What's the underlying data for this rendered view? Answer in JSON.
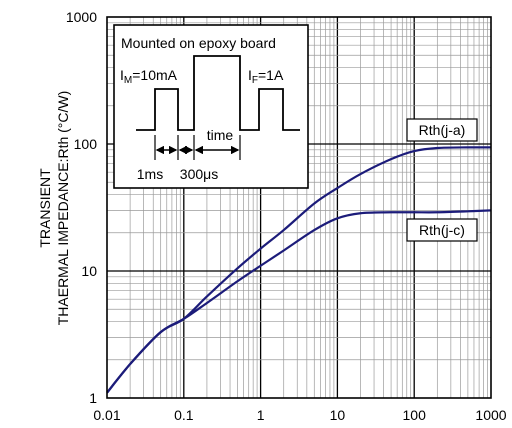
{
  "chart_data": {
    "type": "line",
    "xscale": "log",
    "yscale": "log",
    "xlim": [
      0.01,
      1000
    ],
    "ylim": [
      1,
      1000
    ],
    "xticks": [
      "0.01",
      "0.1",
      "1",
      "10",
      "100",
      "1000"
    ],
    "yticks": [
      "1",
      "10",
      "100",
      "1000"
    ],
    "ylabel_line1": "TRANSIENT",
    "ylabel_line2": "THAERMAL IMPEDANCE:Rth (°C/W)",
    "xlabel": "",
    "grid": true,
    "colors": {
      "series": "#1c1c7a",
      "grid": "#000000",
      "minor_grid": "#9a9a9a"
    },
    "series": [
      {
        "name": "Rth(j-a)",
        "x": [
          0.01,
          0.02,
          0.05,
          0.1,
          0.2,
          0.5,
          1,
          2,
          5,
          10,
          20,
          50,
          100,
          200,
          500,
          1000
        ],
        "values": [
          1.1,
          1.85,
          3.3,
          4.2,
          6.3,
          10.5,
          15,
          21,
          34,
          45,
          58,
          76,
          88,
          93,
          94,
          94
        ]
      },
      {
        "name": "Rth(j-c)",
        "x": [
          0.01,
          0.02,
          0.05,
          0.1,
          0.2,
          0.5,
          1,
          2,
          5,
          10,
          20,
          50,
          100,
          200,
          500,
          1000
        ],
        "values": [
          1.1,
          1.85,
          3.3,
          4.2,
          5.6,
          8.3,
          11,
          14.5,
          21,
          26,
          28.5,
          29,
          29,
          29,
          29.5,
          30
        ]
      }
    ],
    "annotations": {
      "heading": "Mounted on epoxy board",
      "im_main": "I",
      "im_sub": "M",
      "im_value": "=10mA",
      "if_main": "I",
      "if_sub": "F",
      "if_value": "=1A",
      "time": "time",
      "dur1": "1ms",
      "dur2": "300μs"
    }
  }
}
